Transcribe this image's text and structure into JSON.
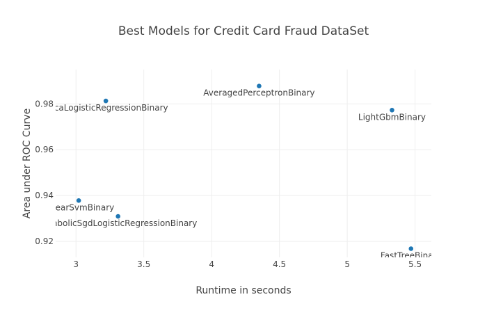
{
  "chart_data": {
    "type": "scatter",
    "title": "Best Models for Credit Card Fraud DataSet",
    "xlabel": "Runtime in seconds",
    "ylabel": "Area under ROC Curve",
    "xlim": [
      2.85,
      5.62
    ],
    "ylim": [
      0.913,
      0.995
    ],
    "x_ticks": [
      3,
      3.5,
      4,
      4.5,
      5,
      5.5
    ],
    "y_ticks": [
      0.92,
      0.94,
      0.96,
      0.98
    ],
    "grid": true,
    "color": "#1f77b4",
    "points": [
      {
        "x": 3.22,
        "y": 0.9813,
        "label": "SdcaLogisticRegressionBinary"
      },
      {
        "x": 4.35,
        "y": 0.9878,
        "label": "AveragedPerceptronBinary"
      },
      {
        "x": 5.33,
        "y": 0.9773,
        "label": "LightGbmBinary"
      },
      {
        "x": 3.02,
        "y": 0.9378,
        "label": "LinearSvmBinary"
      },
      {
        "x": 3.31,
        "y": 0.9309,
        "label": "SymbolicSgdLogisticRegressionBinary"
      },
      {
        "x": 5.47,
        "y": 0.9168,
        "label": "FastTreeBinary"
      }
    ]
  }
}
